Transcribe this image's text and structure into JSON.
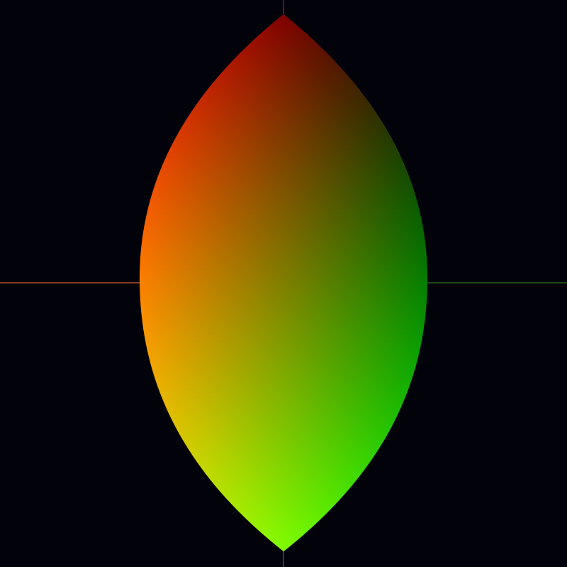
{
  "background_color": "#02020a",
  "lens_shape": {
    "corner_colors": {
      "top_left": "#ff0000",
      "top_right": "#000000",
      "bottom_left": "#ffff00",
      "bottom_right": "#00ff00"
    }
  },
  "axes": {
    "left_color": "#ff7a3a",
    "right_color": "#3a8a2a",
    "top_color": "#a0303a",
    "bottom_color": "#4a8a2a"
  }
}
